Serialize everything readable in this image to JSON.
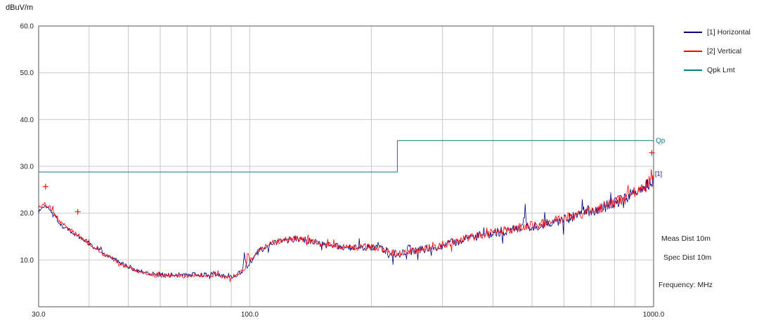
{
  "chart_data": {
    "type": "line",
    "title": "",
    "ylabel": "dBuV/m",
    "xlabel": "Frequency: MHz",
    "x_scale": "log",
    "x_range": [
      30,
      1000
    ],
    "y_range": [
      0,
      60
    ],
    "grid": true,
    "legend_position": "top-right",
    "x_gridlines": [
      30,
      40,
      50,
      60,
      70,
      80,
      90,
      100,
      200,
      300,
      400,
      500,
      600,
      700,
      800,
      900,
      1000
    ],
    "y_gridlines": [
      0,
      10,
      20,
      30,
      40,
      50,
      60
    ],
    "x_tick_labels": [
      {
        "v": 30,
        "label": "30.0"
      },
      {
        "v": 100,
        "label": "100.0"
      },
      {
        "v": 1000,
        "label": "1000.0"
      }
    ],
    "y_tick_labels": [
      {
        "v": 60,
        "label": "60.0"
      },
      {
        "v": 50,
        "label": "50.0"
      },
      {
        "v": 40,
        "label": "40.0"
      },
      {
        "v": 30,
        "label": "30.0"
      },
      {
        "v": 20,
        "label": "20.0"
      },
      {
        "v": 10,
        "label": "10.0"
      }
    ],
    "limit_line": {
      "name": "Qpk Lmt",
      "color": "#008080",
      "points": [
        [
          30,
          28.8
        ],
        [
          232,
          28.8
        ],
        [
          232,
          35.5
        ],
        [
          1000,
          35.5
        ]
      ],
      "end_label": "Qp"
    },
    "series": [
      {
        "name": "[1] Horizontal",
        "color": "#000080",
        "seed": 1337,
        "noise": [
          [
            30,
            0.5
          ],
          [
            90,
            0.5
          ],
          [
            110,
            0.7
          ],
          [
            300,
            0.9
          ],
          [
            500,
            1.1
          ],
          [
            1000,
            1.3
          ]
        ],
        "spikes": [
          [
            97,
            3.0
          ],
          [
            248,
            2.0
          ],
          [
            480,
            4.2
          ],
          [
            668,
            2.4
          ]
        ],
        "envelope": [
          [
            30,
            20.3
          ],
          [
            31,
            21.6
          ],
          [
            32,
            21.0
          ],
          [
            33,
            19.3
          ],
          [
            34,
            17.6
          ],
          [
            35,
            16.8
          ],
          [
            36,
            16.1
          ],
          [
            38,
            14.9
          ],
          [
            40,
            13.6
          ],
          [
            42,
            12.4
          ],
          [
            44,
            11.3
          ],
          [
            46,
            10.2
          ],
          [
            48,
            9.3
          ],
          [
            50,
            8.6
          ],
          [
            52,
            8.0
          ],
          [
            55,
            7.4
          ],
          [
            58,
            7.0
          ],
          [
            62,
            6.8
          ],
          [
            66,
            6.9
          ],
          [
            70,
            6.7
          ],
          [
            74,
            7.0
          ],
          [
            78,
            6.8
          ],
          [
            82,
            7.1
          ],
          [
            86,
            6.6
          ],
          [
            90,
            6.4
          ],
          [
            93,
            6.9
          ],
          [
            96,
            7.7
          ],
          [
            98,
            8.5
          ],
          [
            100,
            9.4
          ],
          [
            103,
            10.9
          ],
          [
            106,
            12.0
          ],
          [
            110,
            13.0
          ],
          [
            115,
            13.6
          ],
          [
            120,
            14.0
          ],
          [
            125,
            14.3
          ],
          [
            130,
            14.5
          ],
          [
            135,
            14.3
          ],
          [
            140,
            14.0
          ],
          [
            145,
            13.7
          ],
          [
            150,
            13.4
          ],
          [
            160,
            13.0
          ],
          [
            170,
            12.7
          ],
          [
            180,
            12.5
          ],
          [
            190,
            12.7
          ],
          [
            200,
            12.8
          ],
          [
            210,
            12.4
          ],
          [
            220,
            11.7
          ],
          [
            230,
            11.2
          ],
          [
            240,
            11.4
          ],
          [
            250,
            11.7
          ],
          [
            260,
            12.0
          ],
          [
            280,
            12.5
          ],
          [
            300,
            13.1
          ],
          [
            320,
            13.8
          ],
          [
            340,
            14.4
          ],
          [
            360,
            15.0
          ],
          [
            380,
            15.4
          ],
          [
            400,
            15.8
          ],
          [
            420,
            16.1
          ],
          [
            440,
            16.4
          ],
          [
            460,
            16.7
          ],
          [
            480,
            17.0
          ],
          [
            500,
            17.2
          ],
          [
            520,
            17.5
          ],
          [
            540,
            17.8
          ],
          [
            560,
            18.1
          ],
          [
            580,
            18.4
          ],
          [
            600,
            18.8
          ],
          [
            620,
            19.1
          ],
          [
            640,
            19.4
          ],
          [
            660,
            19.8
          ],
          [
            680,
            20.2
          ],
          [
            700,
            20.5
          ],
          [
            720,
            20.8
          ],
          [
            740,
            21.1
          ],
          [
            760,
            21.5
          ],
          [
            780,
            21.9
          ],
          [
            800,
            22.3
          ],
          [
            820,
            22.6
          ],
          [
            840,
            23.0
          ],
          [
            860,
            23.5
          ],
          [
            880,
            24.0
          ],
          [
            900,
            24.4
          ],
          [
            920,
            24.9
          ],
          [
            940,
            25.4
          ],
          [
            960,
            25.9
          ],
          [
            980,
            26.3
          ],
          [
            1000,
            26.8
          ]
        ]
      },
      {
        "name": "[2] Vertical",
        "color": "#ff0000",
        "seed": 4242,
        "noise": [
          [
            30,
            0.45
          ],
          [
            90,
            0.45
          ],
          [
            110,
            0.6
          ],
          [
            300,
            0.85
          ],
          [
            500,
            1.0
          ],
          [
            1000,
            1.25
          ]
        ],
        "spikes": [
          [
            99,
            2.2
          ],
          [
            862,
            1.8
          ],
          [
            985,
            1.6
          ]
        ],
        "envelope": [
          [
            30,
            21.0
          ],
          [
            31,
            22.0
          ],
          [
            32,
            21.3
          ],
          [
            33,
            19.6
          ],
          [
            34,
            18.0
          ],
          [
            35,
            17.1
          ],
          [
            36,
            16.3
          ],
          [
            38,
            15.0
          ],
          [
            40,
            13.4
          ],
          [
            42,
            12.1
          ],
          [
            44,
            11.0
          ],
          [
            46,
            10.0
          ],
          [
            48,
            9.1
          ],
          [
            50,
            8.4
          ],
          [
            52,
            7.8
          ],
          [
            55,
            7.2
          ],
          [
            58,
            6.8
          ],
          [
            62,
            6.6
          ],
          [
            66,
            6.7
          ],
          [
            70,
            6.5
          ],
          [
            74,
            6.8
          ],
          [
            78,
            6.6
          ],
          [
            82,
            6.9
          ],
          [
            86,
            6.4
          ],
          [
            90,
            6.3
          ],
          [
            93,
            6.8
          ],
          [
            96,
            7.8
          ],
          [
            98,
            8.7
          ],
          [
            100,
            9.6
          ],
          [
            103,
            11.1
          ],
          [
            106,
            12.2
          ],
          [
            110,
            13.2
          ],
          [
            115,
            13.8
          ],
          [
            120,
            14.2
          ],
          [
            125,
            14.5
          ],
          [
            130,
            14.7
          ],
          [
            135,
            14.5
          ],
          [
            140,
            14.2
          ],
          [
            145,
            13.8
          ],
          [
            150,
            13.5
          ],
          [
            160,
            13.1
          ],
          [
            170,
            12.8
          ],
          [
            180,
            12.6
          ],
          [
            190,
            12.8
          ],
          [
            200,
            12.9
          ],
          [
            210,
            12.5
          ],
          [
            220,
            11.8
          ],
          [
            230,
            11.3
          ],
          [
            240,
            11.5
          ],
          [
            250,
            11.8
          ],
          [
            260,
            12.1
          ],
          [
            280,
            12.6
          ],
          [
            300,
            13.2
          ],
          [
            320,
            13.9
          ],
          [
            340,
            14.5
          ],
          [
            360,
            15.1
          ],
          [
            380,
            15.5
          ],
          [
            400,
            15.9
          ],
          [
            420,
            16.2
          ],
          [
            440,
            16.5
          ],
          [
            460,
            16.8
          ],
          [
            480,
            17.1
          ],
          [
            500,
            17.3
          ],
          [
            520,
            17.6
          ],
          [
            540,
            17.9
          ],
          [
            560,
            18.2
          ],
          [
            580,
            18.5
          ],
          [
            600,
            18.9
          ],
          [
            620,
            19.2
          ],
          [
            640,
            19.5
          ],
          [
            660,
            19.9
          ],
          [
            680,
            20.3
          ],
          [
            700,
            20.6
          ],
          [
            720,
            20.9
          ],
          [
            740,
            21.2
          ],
          [
            760,
            21.6
          ],
          [
            780,
            22.0
          ],
          [
            800,
            22.4
          ],
          [
            820,
            22.7
          ],
          [
            840,
            23.1
          ],
          [
            860,
            23.6
          ],
          [
            880,
            24.1
          ],
          [
            900,
            24.6
          ],
          [
            920,
            25.1
          ],
          [
            940,
            25.6
          ],
          [
            960,
            26.1
          ],
          [
            980,
            26.5
          ],
          [
            1000,
            27.0
          ]
        ]
      }
    ],
    "markers": {
      "color": "#cc2200",
      "points": [
        [
          31.2,
          25.7
        ],
        [
          37.5,
          20.3
        ],
        [
          990,
          32.9
        ]
      ]
    },
    "trace_end_label": {
      "text": "[1]",
      "color": "#000080",
      "value": 28.4
    }
  },
  "legend": [
    {
      "label": "[1] Horizontal",
      "color": "#000080"
    },
    {
      "label": "[2] Vertical",
      "color": "#ff0000"
    },
    {
      "label": "Qpk Lmt",
      "color": "#008080"
    }
  ],
  "annotations": [
    {
      "text": "Meas Dist 10m"
    },
    {
      "text": "Spec Dist 10m"
    }
  ]
}
